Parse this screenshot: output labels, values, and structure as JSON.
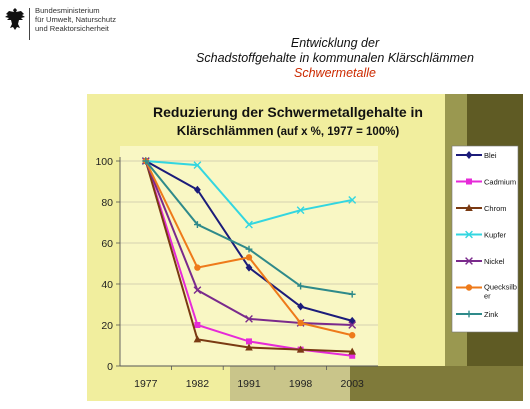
{
  "header": {
    "ministry_lines": [
      "Bundesministerium",
      "für Umwelt, Naturschutz",
      "und Reaktorsicherheit"
    ],
    "title_line1": "Entwicklung der",
    "title_line2": "Schadstoffgehalte in kommunalen Klärschlämmen",
    "subtitle": "Schwermetalle"
  },
  "colors": {
    "chart_bg": "#f2efaa",
    "plot_bg": "#f9f7c4",
    "frame_dark": "#5f5b24",
    "frame_mid": "#9a9850"
  },
  "chart_data": {
    "type": "line",
    "title_line1": "Reduzierung der Schwermetallgehalte in",
    "title_line2_bold": "Klärschlämmen",
    "title_line2_rest": " (auf x %, 1977 = 100%)",
    "xlabel": "",
    "ylabel": "",
    "categories": [
      "1977",
      "1982",
      "1991",
      "1998",
      "2003"
    ],
    "ylim": [
      0,
      100
    ],
    "yticks": [
      0,
      20,
      40,
      60,
      80,
      100
    ],
    "grid": true,
    "legend_position": "right",
    "series": [
      {
        "name": "Blei",
        "color": "#1c1c7a",
        "marker": "diamond",
        "values": [
          100,
          86,
          48,
          29,
          22
        ]
      },
      {
        "name": "Cadmium",
        "color": "#e62ad8",
        "marker": "square",
        "values": [
          100,
          20,
          12,
          8,
          5
        ]
      },
      {
        "name": "Chrom",
        "color": "#7a3a12",
        "marker": "triangle",
        "values": [
          100,
          13,
          9,
          8,
          7
        ]
      },
      {
        "name": "Kupfer",
        "color": "#33d6e0",
        "marker": "x",
        "values": [
          100,
          98,
          69,
          76,
          81
        ]
      },
      {
        "name": "Nickel",
        "color": "#7a2a8c",
        "marker": "x",
        "values": [
          100,
          37,
          23,
          21,
          20
        ]
      },
      {
        "name": "Quecksilber",
        "legend_line1": "Quecksilb",
        "legend_line2": "er",
        "color": "#ee7a1a",
        "marker": "circle",
        "values": [
          100,
          48,
          53,
          21,
          15
        ]
      },
      {
        "name": "Zink",
        "color": "#2f8a8a",
        "marker": "plus",
        "values": [
          100,
          69,
          57,
          39,
          35
        ]
      }
    ]
  }
}
